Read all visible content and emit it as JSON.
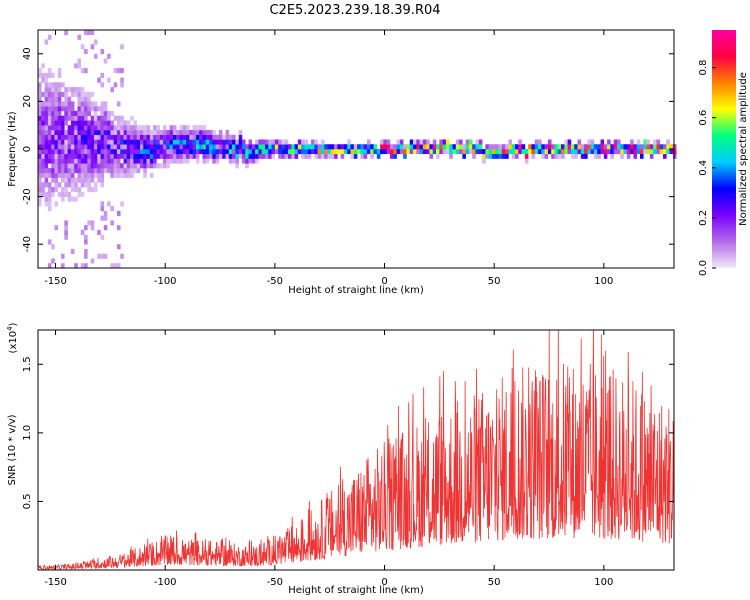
{
  "title": "C2E5.2023.239.18.39.R04",
  "chart_data": [
    {
      "type": "heatmap",
      "xlabel": "Height of straight line (km)",
      "ylabel": "Frequency (Hz)",
      "xlim": [
        -158,
        132
      ],
      "ylim": [
        -50,
        50
      ],
      "xticks": [
        -150,
        -100,
        -50,
        0,
        50,
        100
      ],
      "yticks": [
        -40,
        -20,
        0,
        20,
        40
      ],
      "colorbar": {
        "label": "Normalized spectral amplitude",
        "range": [
          0,
          0.95
        ],
        "ticks": [
          "0.0",
          "0.2",
          "0.4",
          "0.6",
          "0.8"
        ],
        "tick_values": [
          0.0,
          0.2,
          0.4,
          0.6,
          0.8
        ],
        "colors": [
          "#f0e8fb",
          "#b46be6",
          "#7a00ff",
          "#0000ff",
          "#00ccff",
          "#00ff80",
          "#ffff00",
          "#ff8000",
          "#ff0040",
          "#ff00a0"
        ]
      },
      "band": {
        "x": [
          -155,
          -140,
          -125,
          -110,
          -95,
          -80,
          -65,
          -50,
          -35,
          -20,
          -5,
          10,
          25,
          40,
          55,
          70,
          85,
          100,
          115,
          130
        ],
        "center_hz": [
          5,
          4,
          2,
          -1,
          2,
          1,
          0,
          0,
          0,
          0,
          0,
          0,
          1,
          0,
          -1,
          0,
          0,
          0,
          0,
          0
        ],
        "halfwidth_hz": [
          40,
          30,
          18,
          12,
          9,
          8,
          6,
          4,
          3.5,
          3,
          3,
          3,
          3,
          3,
          3,
          3,
          3,
          3,
          3,
          3
        ],
        "peak_amplitude": [
          0.2,
          0.25,
          0.3,
          0.35,
          0.4,
          0.45,
          0.5,
          0.55,
          0.65,
          0.75,
          0.8,
          0.85,
          0.85,
          0.9,
          0.85,
          0.9,
          0.9,
          0.85,
          0.9,
          0.8
        ]
      }
    },
    {
      "type": "line",
      "color": "#ee3333",
      "xlabel": "Height of straight line (km)",
      "ylabel": "SNR (10 * v/v)",
      "yscale_label": "(x10",
      "yscale_exp": "4",
      "yscale_close": ")",
      "xlim": [
        -158,
        132
      ],
      "ylim": [
        0,
        1.75
      ],
      "xticks": [
        -150,
        -100,
        -50,
        0,
        50,
        100
      ],
      "yticks": [
        0.5,
        1.0,
        1.5
      ],
      "ytick_labels": [
        "0.5",
        "1.0",
        "1.5"
      ],
      "envelope": {
        "x": [
          -158,
          -140,
          -120,
          -100,
          -80,
          -60,
          -50,
          -40,
          -30,
          -20,
          -10,
          0,
          10,
          20,
          30,
          40,
          50,
          60,
          70,
          80,
          90,
          100,
          110,
          120,
          132
        ],
        "y": [
          0.03,
          0.05,
          0.12,
          0.25,
          0.22,
          0.18,
          0.25,
          0.35,
          0.5,
          0.65,
          0.8,
          0.95,
          1.05,
          1.15,
          1.25,
          1.3,
          1.4,
          1.5,
          1.5,
          1.55,
          1.55,
          1.5,
          1.45,
          1.35,
          1.25
        ]
      }
    }
  ]
}
